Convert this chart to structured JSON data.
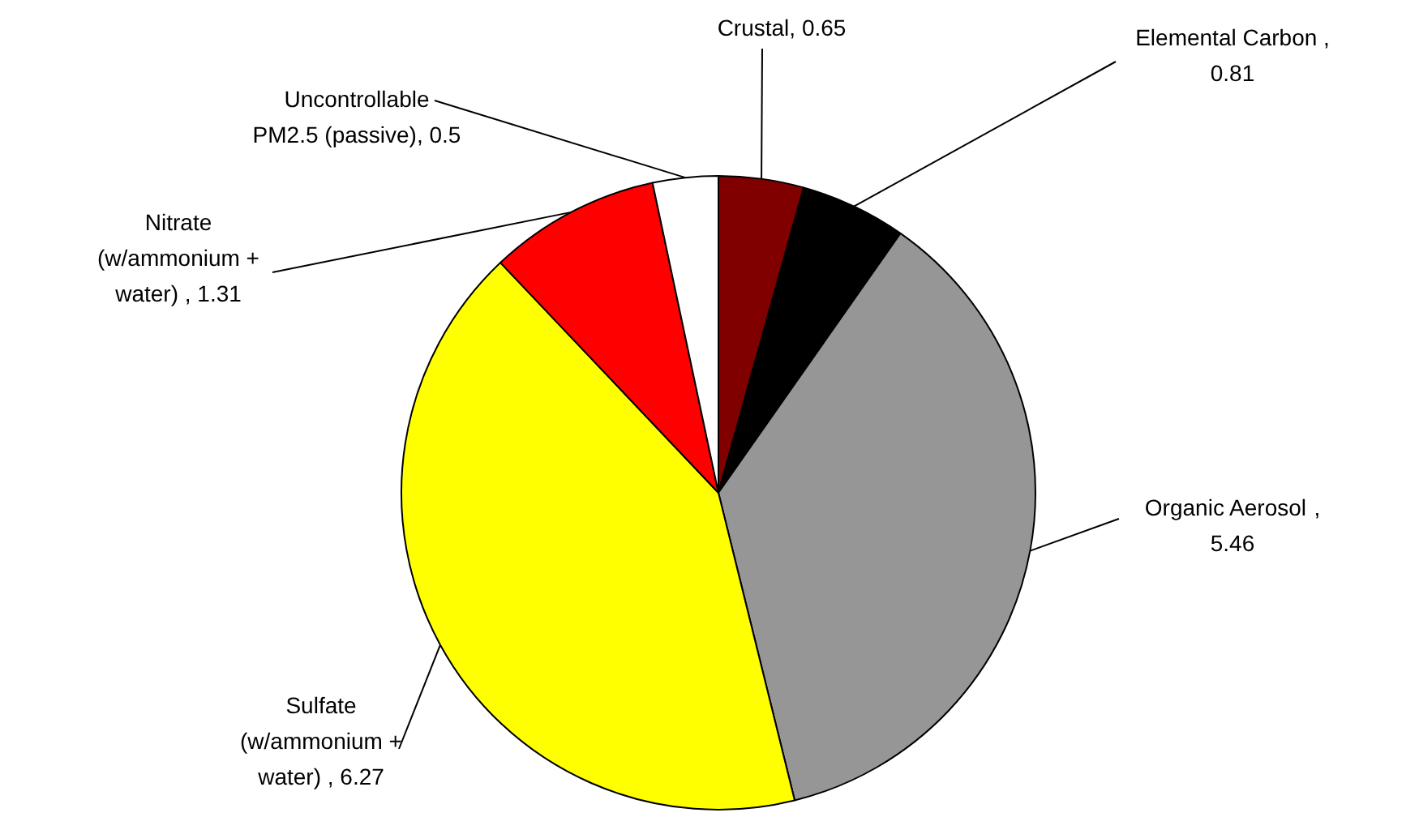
{
  "chart_data": {
    "type": "pie",
    "categories": [
      "Crustal",
      "Elemental Carbon ",
      "Organic Aerosol ",
      "Sulfate (w/ammonium + water) ",
      "Nitrate (w/ammonium + water) ",
      "Uncontrollable PM2.5 (passive)"
    ],
    "values": [
      0.65,
      0.81,
      5.46,
      6.27,
      1.31,
      0.5
    ],
    "colors": [
      "#800000",
      "#000000",
      "#969696",
      "#ffff00",
      "#ff0000",
      "#ffffff"
    ],
    "value_labels": [
      ", 0.65",
      ", 0.81",
      ", 5.46",
      ", 6.27",
      ", 1.31",
      ", 0.5"
    ],
    "legend": false
  }
}
